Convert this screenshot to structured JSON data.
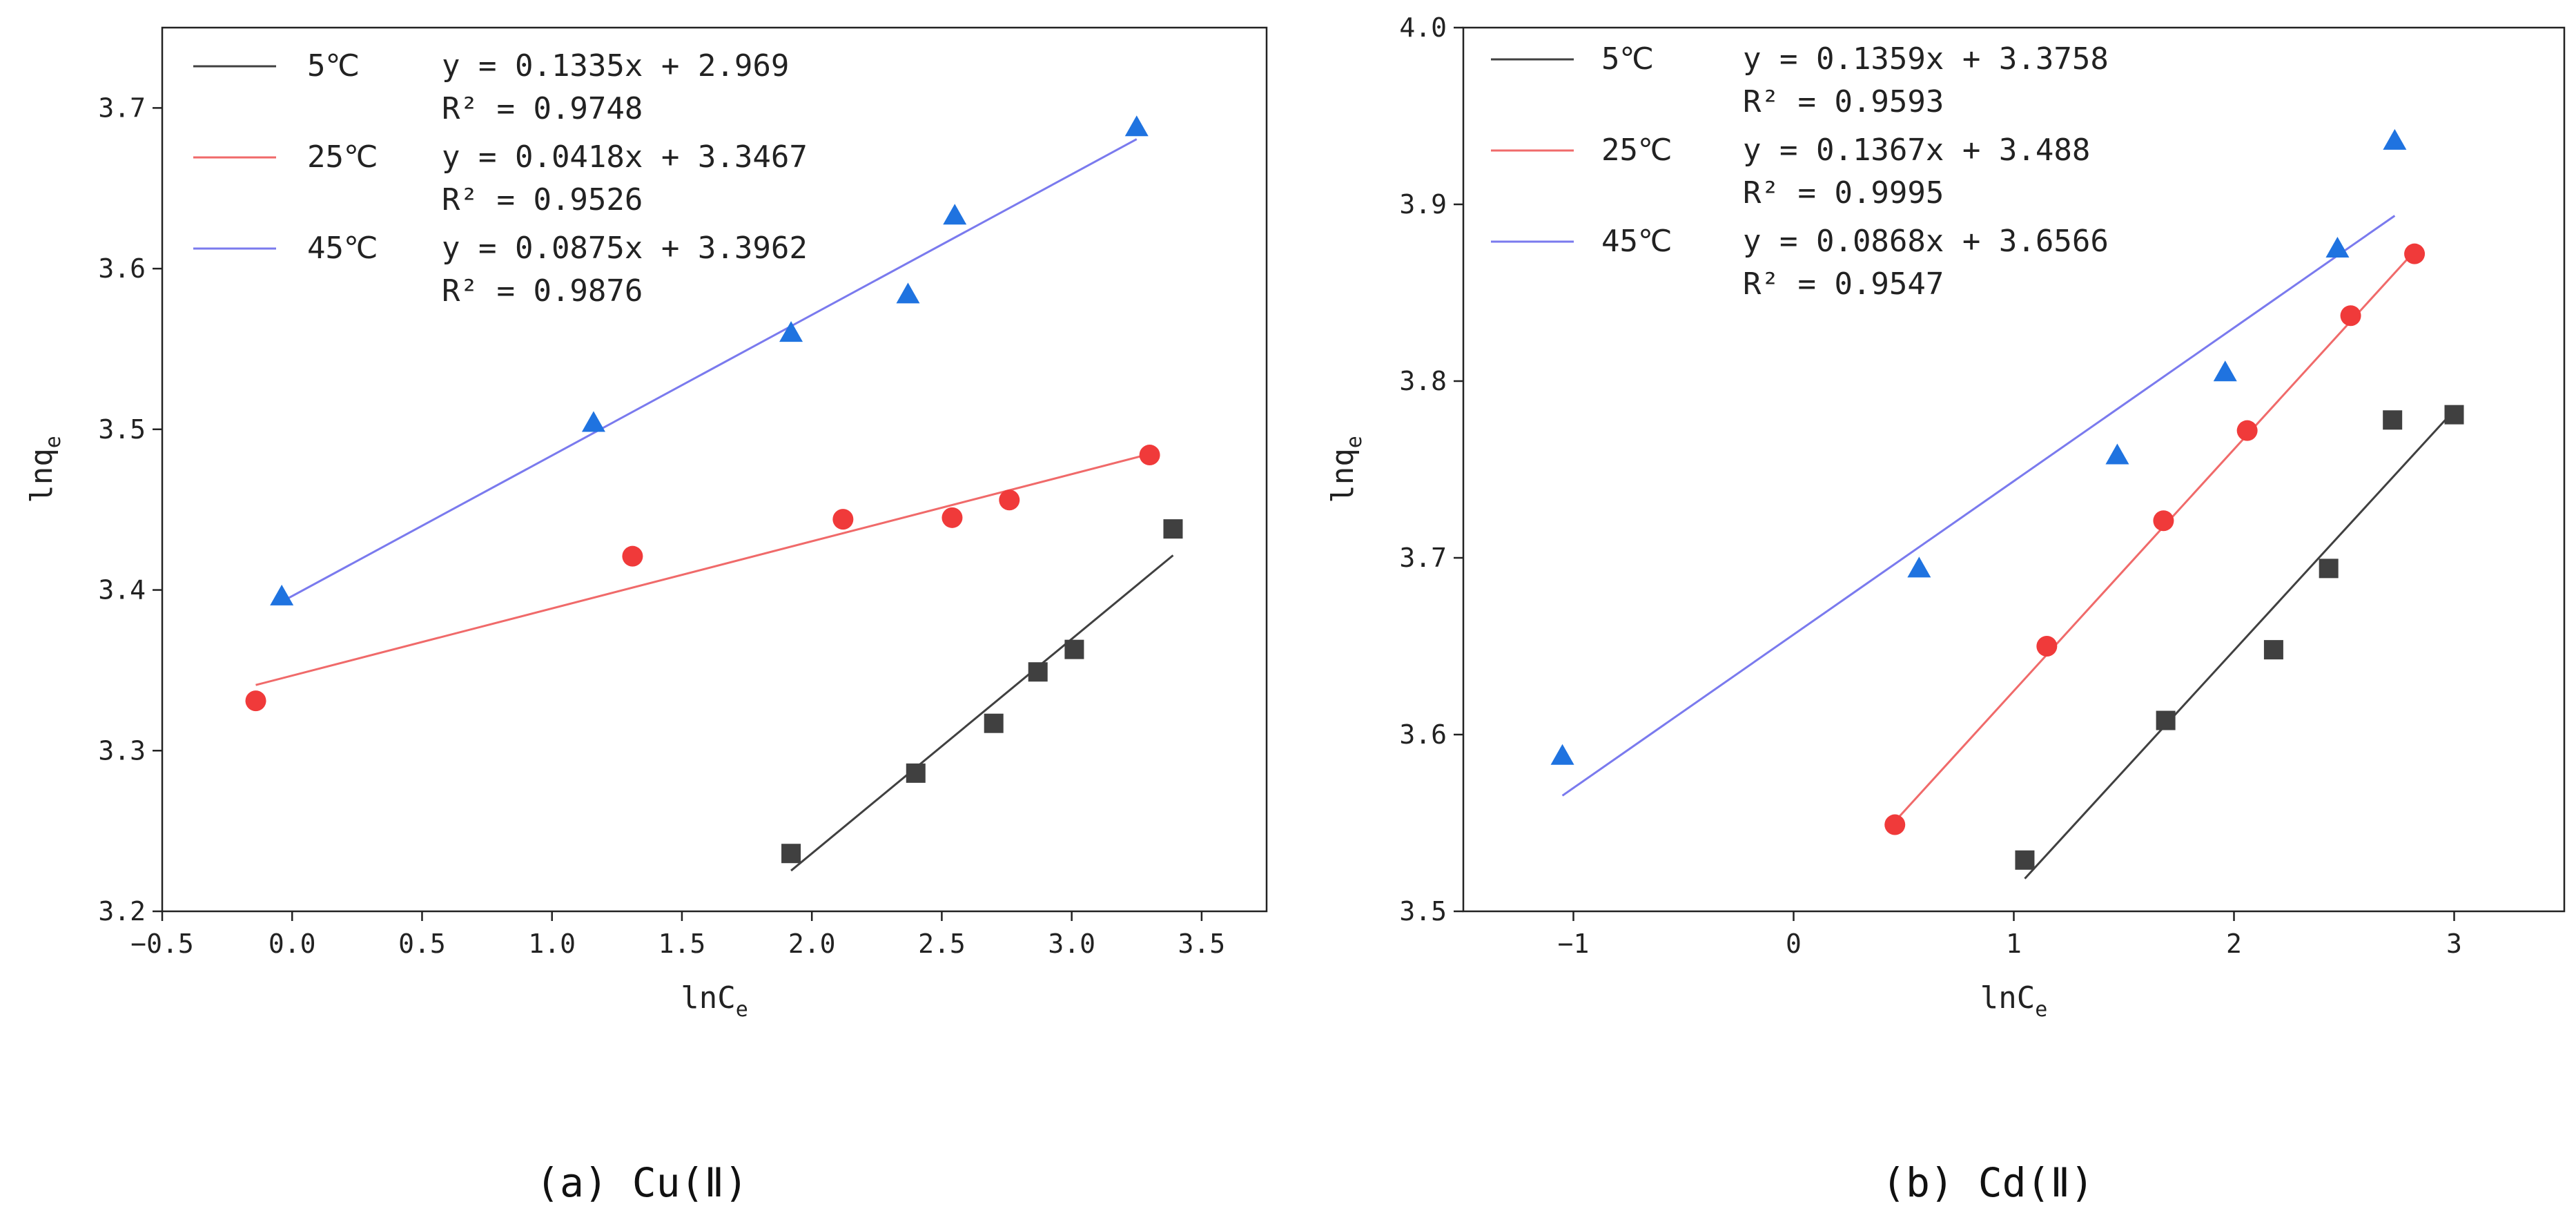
{
  "chart_data": [
    {
      "type": "scatter",
      "caption": "(a) Cu(Ⅱ)",
      "xlabel": "lnC",
      "xlabel_sub": "e",
      "ylabel": "lnq",
      "ylabel_sub": "e",
      "xlim": [
        -0.5,
        3.75
      ],
      "ylim": [
        3.2,
        3.75
      ],
      "xticks": [
        -0.5,
        0.0,
        0.5,
        1.0,
        1.5,
        2.0,
        2.5,
        3.0,
        3.5
      ],
      "xtick_labels": [
        "−0.5",
        "0.0",
        "0.5",
        "1.0",
        "1.5",
        "2.0",
        "2.5",
        "3.0",
        "3.5"
      ],
      "yticks": [
        3.2,
        3.3,
        3.4,
        3.5,
        3.6,
        3.7
      ],
      "ytick_labels": [
        "3.2",
        "3.3",
        "3.4",
        "3.5",
        "3.6",
        "3.7"
      ],
      "series": [
        {
          "name": "5℃",
          "color": "#404040",
          "line_color": "#404040",
          "marker": "square",
          "equation": "y = 0.1335x + 2.969",
          "r2": "R² = 0.9748",
          "x": [
            1.92,
            2.4,
            2.7,
            2.87,
            3.01,
            3.39
          ],
          "y": [
            3.236,
            3.286,
            3.317,
            3.349,
            3.363,
            3.438
          ],
          "fit": {
            "slope": 0.1335,
            "intercept": 2.969,
            "x_range": [
              1.92,
              3.39
            ]
          }
        },
        {
          "name": "25℃",
          "color": "#f03a3a",
          "line_color": "#f06a6a",
          "marker": "circle",
          "equation": "y = 0.0418x + 3.3467",
          "r2": "R² = 0.9526",
          "x": [
            -0.14,
            1.31,
            2.12,
            2.54,
            2.76,
            3.3
          ],
          "y": [
            3.331,
            3.421,
            3.444,
            3.445,
            3.456,
            3.484
          ],
          "fit": {
            "slope": 0.0418,
            "intercept": 3.3467,
            "x_range": [
              -0.14,
              3.3
            ]
          }
        },
        {
          "name": "45℃",
          "color": "#1f73e0",
          "line_color": "#7a7aee",
          "marker": "triangle",
          "equation": "y = 0.0875x + 3.3962",
          "r2": "R² = 0.9876",
          "x": [
            -0.04,
            1.16,
            1.92,
            2.37,
            2.55,
            3.25
          ],
          "y": [
            3.396,
            3.504,
            3.56,
            3.584,
            3.633,
            3.688
          ],
          "fit": {
            "slope": 0.0875,
            "intercept": 3.3962,
            "x_range": [
              -0.04,
              3.25
            ]
          }
        }
      ],
      "legend_position": "top-left"
    },
    {
      "type": "scatter",
      "caption": "(b) Cd(Ⅱ)",
      "xlabel": "lnC",
      "xlabel_sub": "e",
      "ylabel": "lnq",
      "ylabel_sub": "e",
      "xlim": [
        -1.5,
        3.5
      ],
      "ylim": [
        3.5,
        4.0
      ],
      "xticks": [
        -1,
        0,
        1,
        2,
        3
      ],
      "xtick_labels": [
        "−1",
        "0",
        "1",
        "2",
        "3"
      ],
      "yticks": [
        3.5,
        3.6,
        3.7,
        3.8,
        3.9,
        4.0
      ],
      "ytick_labels": [
        "3.5",
        "3.6",
        "3.7",
        "3.8",
        "3.9",
        "4.0"
      ],
      "series": [
        {
          "name": "5℃",
          "color": "#404040",
          "line_color": "#404040",
          "marker": "square",
          "equation": "y = 0.1359x + 3.3758",
          "r2": "R² = 0.9593",
          "x": [
            1.05,
            1.69,
            2.18,
            2.43,
            2.72,
            3.0
          ],
          "y": [
            3.529,
            3.608,
            3.648,
            3.694,
            3.778,
            3.781
          ],
          "fit": {
            "slope": 0.1359,
            "intercept": 3.3758,
            "x_range": [
              1.05,
              3.0
            ]
          }
        },
        {
          "name": "25℃",
          "color": "#f03a3a",
          "line_color": "#f06a6a",
          "marker": "circle",
          "equation": "y = 0.1367x + 3.488",
          "r2": "R² = 0.9995",
          "x": [
            0.46,
            1.15,
            1.68,
            2.06,
            2.53,
            2.82
          ],
          "y": [
            3.549,
            3.65,
            3.721,
            3.772,
            3.837,
            3.872
          ],
          "fit": {
            "slope": 0.1367,
            "intercept": 3.488,
            "x_range": [
              0.46,
              2.82
            ]
          }
        },
        {
          "name": "45℃",
          "color": "#1f73e0",
          "line_color": "#7a7aee",
          "marker": "triangle",
          "equation": "y = 0.0868x + 3.6566",
          "r2": "R² = 0.9547",
          "x": [
            -1.05,
            0.57,
            1.47,
            1.96,
            2.47,
            2.73
          ],
          "y": [
            3.588,
            3.694,
            3.758,
            3.805,
            3.875,
            3.936
          ],
          "fit": {
            "slope": 0.0868,
            "intercept": 3.6566,
            "x_range": [
              -1.05,
              2.73
            ]
          }
        }
      ],
      "legend_position": "top-left"
    }
  ]
}
